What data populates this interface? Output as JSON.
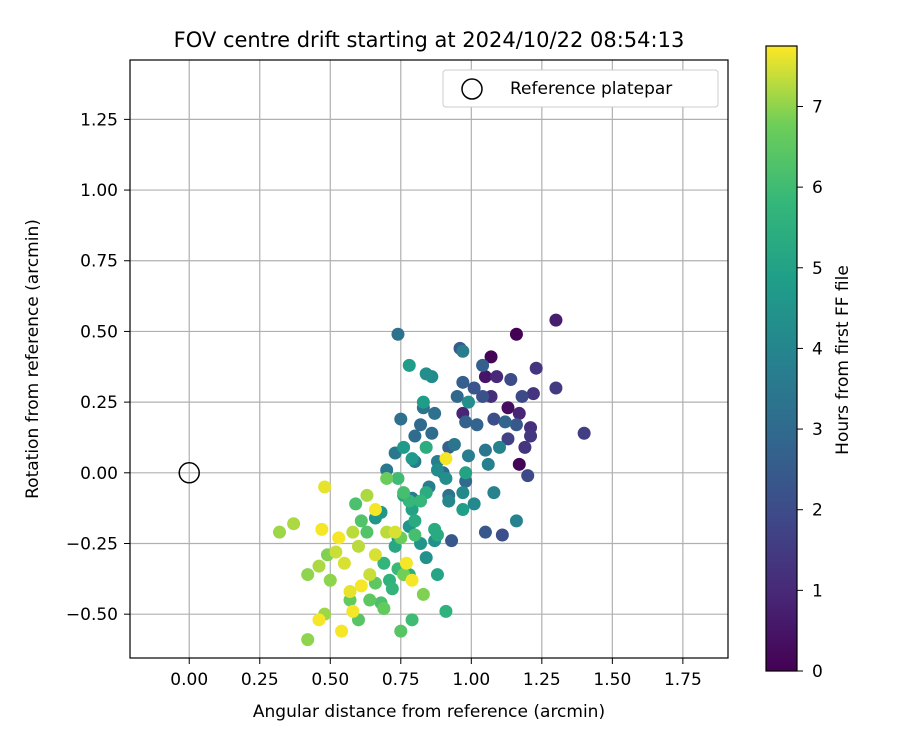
{
  "chart_data": {
    "type": "scatter",
    "title": "FOV centre drift starting at 2024/10/22 08:54:13",
    "xlabel": "Angular distance from reference (arcmin)",
    "ylabel": "Rotation from reference (arcmin)",
    "xlim": [
      -0.21,
      1.91
    ],
    "ylim": [
      -0.655,
      1.46
    ],
    "xticks": [
      "0.00",
      "0.25",
      "0.50",
      "0.75",
      "1.00",
      "1.25",
      "1.50",
      "1.75"
    ],
    "xtick_values": [
      0,
      0.25,
      0.5,
      0.75,
      1.0,
      1.25,
      1.5,
      1.75
    ],
    "yticks": [
      "−0.50",
      "−0.25",
      "0.00",
      "0.25",
      "0.50",
      "0.75",
      "1.00",
      "1.25"
    ],
    "ytick_values": [
      -0.5,
      -0.25,
      0,
      0.25,
      0.5,
      0.75,
      1.0,
      1.25
    ],
    "grid": true,
    "legend": {
      "placement": "top-right",
      "entries": [
        "Reference platepar"
      ]
    },
    "reference_point": {
      "x": 0.0,
      "y": 0.0,
      "label": "Reference platepar"
    },
    "colorbar": {
      "label": "Hours from first FF file",
      "colormap": "viridis",
      "range": [
        0,
        7.75
      ],
      "ticks": [
        "0",
        "1",
        "2",
        "3",
        "4",
        "5",
        "6",
        "7"
      ],
      "tick_values": [
        0,
        1,
        2,
        3,
        4,
        5,
        6,
        7
      ]
    },
    "points": [
      [
        1.16,
        0.49,
        0.0
      ],
      [
        1.07,
        0.41,
        0.1
      ],
      [
        1.17,
        0.03,
        0.1
      ],
      [
        1.13,
        0.23,
        0.3
      ],
      [
        1.05,
        0.34,
        0.5
      ],
      [
        1.3,
        0.54,
        0.7
      ],
      [
        0.97,
        0.21,
        0.9
      ],
      [
        1.17,
        0.21,
        0.9
      ],
      [
        1.09,
        0.34,
        1.0
      ],
      [
        1.07,
        0.27,
        1.1
      ],
      [
        1.21,
        0.16,
        1.2
      ],
      [
        1.19,
        0.09,
        1.3
      ],
      [
        1.23,
        0.37,
        1.3
      ],
      [
        1.22,
        0.28,
        1.3
      ],
      [
        1.21,
        0.13,
        1.4
      ],
      [
        1.3,
        0.3,
        1.5
      ],
      [
        1.4,
        0.14,
        1.6
      ],
      [
        1.13,
        0.12,
        1.7
      ],
      [
        1.18,
        0.27,
        1.9
      ],
      [
        1.2,
        -0.01,
        1.9
      ],
      [
        1.14,
        0.33,
        2.0
      ],
      [
        1.08,
        0.19,
        2.1
      ],
      [
        1.11,
        -0.22,
        2.1
      ],
      [
        1.04,
        0.27,
        2.2
      ],
      [
        1.01,
        0.3,
        2.3
      ],
      [
        1.16,
        0.17,
        2.4
      ],
      [
        1.05,
        -0.21,
        2.4
      ],
      [
        0.93,
        -0.24,
        2.4
      ],
      [
        0.96,
        0.44,
        2.5
      ],
      [
        1.04,
        0.38,
        2.6
      ],
      [
        0.97,
        0.32,
        2.6
      ],
      [
        0.92,
        0.09,
        2.7
      ],
      [
        0.98,
        0.18,
        2.7
      ],
      [
        1.02,
        0.17,
        2.8
      ],
      [
        1.12,
        0.18,
        2.8
      ],
      [
        0.95,
        0.27,
        2.9
      ],
      [
        0.9,
        0.0,
        2.9
      ],
      [
        0.98,
        -0.03,
        3.0
      ],
      [
        0.82,
        0.17,
        3.0
      ],
      [
        0.8,
        0.13,
        3.1
      ],
      [
        0.86,
        0.14,
        3.1
      ],
      [
        0.75,
        0.19,
        3.2
      ],
      [
        0.87,
        0.21,
        3.2
      ],
      [
        0.83,
        0.23,
        3.3
      ],
      [
        0.74,
        0.49,
        3.3
      ],
      [
        0.92,
        -0.08,
        3.3
      ],
      [
        0.94,
        0.1,
        3.4
      ],
      [
        1.05,
        0.08,
        3.4
      ],
      [
        0.73,
        0.07,
        3.5
      ],
      [
        0.7,
        0.01,
        3.5
      ],
      [
        0.79,
        -0.09,
        3.6
      ],
      [
        0.85,
        -0.05,
        3.6
      ],
      [
        0.8,
        0.04,
        3.6
      ],
      [
        0.88,
        0.04,
        3.7
      ],
      [
        0.99,
        0.06,
        3.7
      ],
      [
        0.97,
        0.43,
        3.7
      ],
      [
        1.06,
        0.03,
        3.8
      ],
      [
        1.1,
        0.09,
        3.9
      ],
      [
        1.16,
        -0.17,
        3.9
      ],
      [
        1.08,
        -0.07,
        3.9
      ],
      [
        0.92,
        -0.1,
        4.0
      ],
      [
        0.97,
        -0.07,
        4.1
      ],
      [
        1.01,
        -0.11,
        4.1
      ],
      [
        0.88,
        0.01,
        4.2
      ],
      [
        0.86,
        0.34,
        4.2
      ],
      [
        0.84,
        0.35,
        4.3
      ],
      [
        0.99,
        0.25,
        4.3
      ],
      [
        0.91,
        -0.02,
        4.3
      ],
      [
        0.87,
        -0.24,
        4.4
      ],
      [
        0.84,
        -0.3,
        4.4
      ],
      [
        0.82,
        -0.25,
        4.5
      ],
      [
        0.74,
        -0.23,
        4.5
      ],
      [
        0.78,
        -0.19,
        4.5
      ],
      [
        0.68,
        -0.14,
        4.6
      ],
      [
        0.66,
        -0.16,
        4.6
      ],
      [
        0.76,
        0.09,
        4.7
      ],
      [
        0.79,
        0.05,
        4.7
      ],
      [
        0.83,
        0.25,
        4.8
      ],
      [
        0.78,
        0.38,
        4.8
      ],
      [
        0.97,
        -0.13,
        4.9
      ],
      [
        0.98,
        0.0,
        5.0
      ],
      [
        0.79,
        -0.13,
        5.0
      ],
      [
        0.88,
        -0.36,
        5.1
      ],
      [
        0.73,
        -0.26,
        5.2
      ],
      [
        0.76,
        -0.08,
        5.2
      ],
      [
        0.8,
        -0.17,
        5.3
      ],
      [
        0.87,
        -0.2,
        5.3
      ],
      [
        0.88,
        -0.22,
        5.3
      ],
      [
        0.84,
        0.09,
        5.4
      ],
      [
        0.84,
        -0.07,
        5.4
      ],
      [
        0.78,
        -0.36,
        5.5
      ],
      [
        0.91,
        -0.49,
        5.6
      ],
      [
        0.71,
        -0.38,
        5.6
      ],
      [
        0.69,
        -0.32,
        5.7
      ],
      [
        0.72,
        -0.41,
        5.7
      ],
      [
        0.82,
        -0.1,
        5.8
      ],
      [
        0.78,
        -0.1,
        5.8
      ],
      [
        0.74,
        -0.34,
        5.9
      ],
      [
        0.79,
        -0.52,
        6.0
      ],
      [
        0.74,
        -0.02,
        6.0
      ],
      [
        0.76,
        -0.07,
        6.1
      ],
      [
        0.8,
        -0.22,
        6.1
      ],
      [
        0.68,
        -0.46,
        6.2
      ],
      [
        0.59,
        -0.11,
        6.2
      ],
      [
        0.61,
        -0.17,
        6.3
      ],
      [
        0.63,
        -0.21,
        6.3
      ],
      [
        0.75,
        -0.56,
        6.4
      ],
      [
        0.6,
        -0.52,
        6.4
      ],
      [
        0.64,
        -0.45,
        6.5
      ],
      [
        0.66,
        -0.39,
        6.5
      ],
      [
        0.69,
        -0.48,
        6.6
      ],
      [
        0.57,
        -0.45,
        6.6
      ],
      [
        0.75,
        -0.23,
        6.7
      ],
      [
        0.7,
        -0.02,
        6.7
      ],
      [
        0.76,
        -0.36,
        6.8
      ],
      [
        0.83,
        -0.43,
        6.9
      ],
      [
        0.49,
        -0.29,
        6.9
      ],
      [
        0.5,
        -0.38,
        7.0
      ],
      [
        0.42,
        -0.59,
        7.0
      ],
      [
        0.42,
        -0.36,
        7.0
      ],
      [
        0.48,
        -0.5,
        7.1
      ],
      [
        0.32,
        -0.21,
        7.1
      ],
      [
        0.37,
        -0.18,
        7.2
      ],
      [
        0.46,
        -0.33,
        7.2
      ],
      [
        0.63,
        -0.08,
        7.2
      ],
      [
        0.58,
        -0.21,
        7.3
      ],
      [
        0.7,
        -0.21,
        7.3
      ],
      [
        0.6,
        -0.26,
        7.3
      ],
      [
        0.64,
        -0.36,
        7.4
      ],
      [
        0.52,
        -0.28,
        7.4
      ],
      [
        0.55,
        -0.32,
        7.5
      ],
      [
        0.66,
        -0.29,
        7.5
      ],
      [
        0.73,
        -0.21,
        7.5
      ],
      [
        0.57,
        -0.42,
        7.6
      ],
      [
        0.48,
        -0.05,
        7.6
      ],
      [
        0.46,
        -0.52,
        7.7
      ],
      [
        0.54,
        -0.56,
        7.7
      ],
      [
        0.58,
        -0.49,
        7.7
      ],
      [
        0.66,
        -0.13,
        7.7
      ],
      [
        0.79,
        -0.38,
        7.7
      ],
      [
        0.91,
        0.05,
        7.7
      ],
      [
        0.61,
        -0.4,
        7.7
      ],
      [
        0.53,
        -0.23,
        7.7
      ],
      [
        0.47,
        -0.2,
        7.7
      ],
      [
        0.77,
        -0.32,
        7.7
      ]
    ]
  }
}
